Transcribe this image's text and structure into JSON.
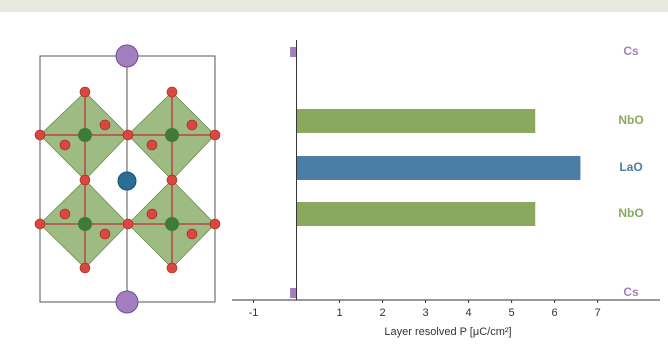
{
  "chart_data": {
    "type": "barh",
    "categories": [
      "Cs",
      "NbO",
      "LaO",
      "NbO",
      "Cs"
    ],
    "values": [
      -0.15,
      5.55,
      6.6,
      5.55,
      -0.15
    ],
    "colors": [
      "#a47fbf",
      "#8aa95e",
      "#4a7ea6",
      "#8aa95e",
      "#a47fbf"
    ],
    "xlabel": "Layer resolved P [μC/cm²]",
    "xlim": [
      -1.5,
      8.45
    ],
    "xticks": [
      -1,
      1,
      2,
      3,
      4,
      5,
      6,
      7
    ]
  }
}
